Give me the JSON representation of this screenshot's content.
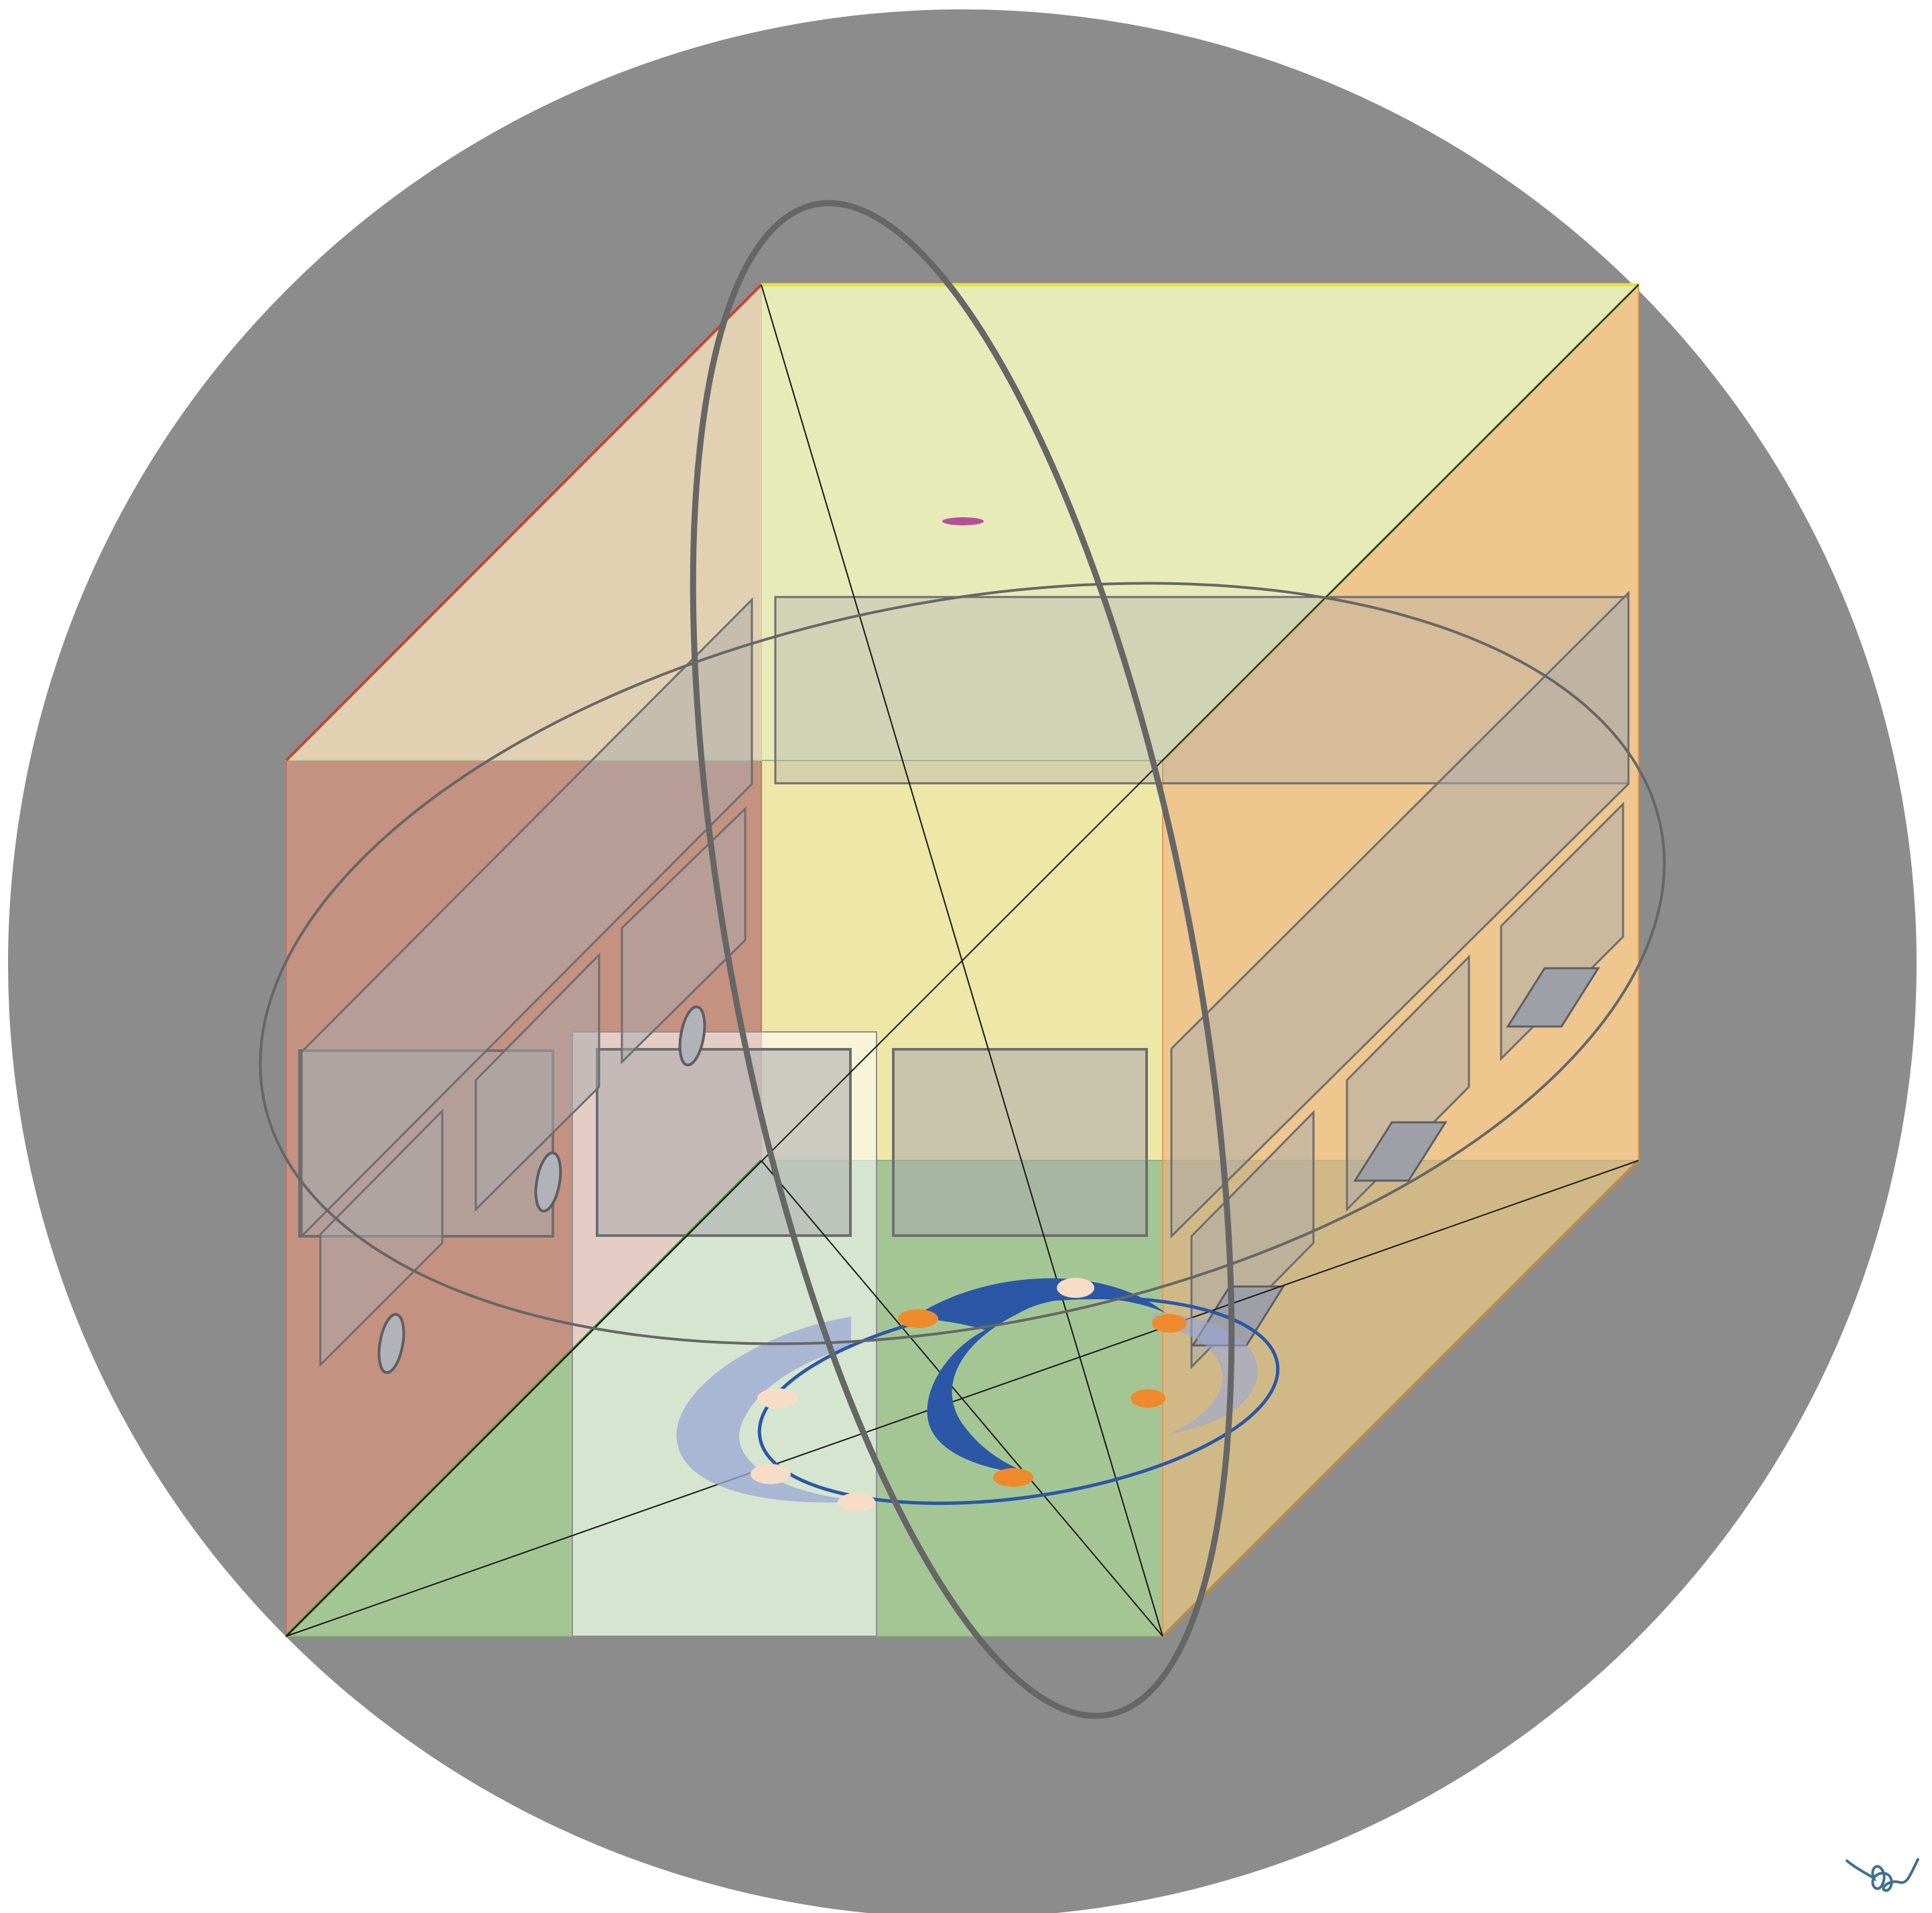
{
  "diagram": {
    "kind": "transparent cube inside circumscribing sphere",
    "colors": {
      "background": "#ffffff",
      "sphere_outline": "#8c8c8c",
      "face_left": "#e8957a",
      "face_top": "#e4ecbf",
      "face_back": "#fff7ad",
      "face_bottom": "#a8d096",
      "face_right": "#eeb27e",
      "face_left_top": "#e6cfb6",
      "edge_top_back": "#e7e041",
      "edge_left_top": "#c2452d",
      "edge_front_right": "#bf8a45",
      "inner_panel": "#a9aaac",
      "inner_panel_stroke": "#6e6e70",
      "great_circle": "#666666",
      "orbit_blue": "#2b57a6",
      "orbit_light": "#9aa7d6",
      "orbit_node_orange": "#ee8a2c",
      "orbit_node_cream": "#f7dcc6",
      "top_marker": "#b4509b",
      "diagonal_lines": "#1a1a1a"
    },
    "icons": {
      "signature": "signature-icon",
      "top_marker": "magenta-dot-icon"
    }
  }
}
